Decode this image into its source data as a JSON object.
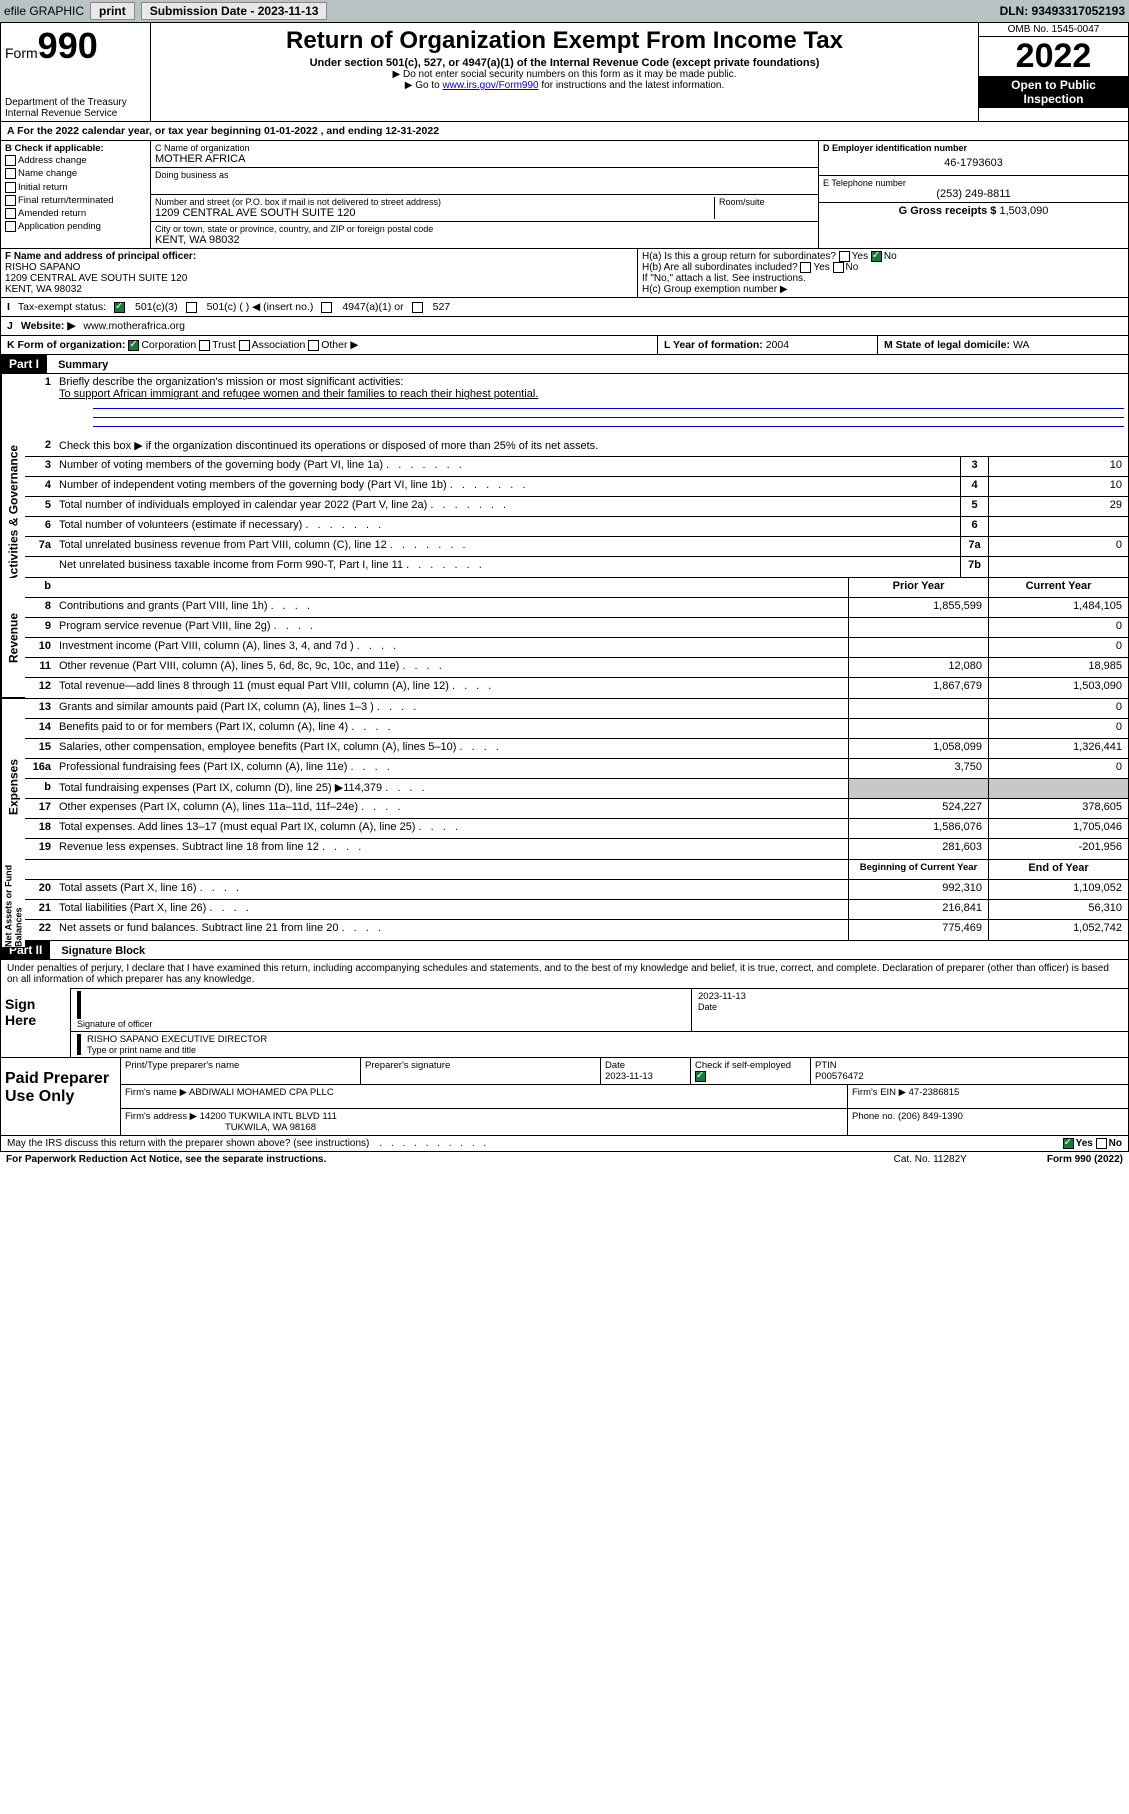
{
  "topbar": {
    "efile": "efile GRAPHIC",
    "print": "print",
    "subdate_lbl": "Submission Date - 2023-11-13",
    "dln": "DLN: 93493317052193"
  },
  "header": {
    "form_prefix": "Form",
    "form_num": "990",
    "title": "Return of Organization Exempt From Income Tax",
    "sub": "Under section 501(c), 527, or 4947(a)(1) of the Internal Revenue Code (except private foundations)",
    "note1": "▶ Do not enter social security numbers on this form as it may be made public.",
    "note2_pre": "▶ Go to ",
    "note2_link": "www.irs.gov/Form990",
    "note2_post": " for instructions and the latest information.",
    "dept": "Department of the Treasury",
    "irs": "Internal Revenue Service",
    "omb": "OMB No. 1545-0047",
    "year": "2022",
    "open": "Open to Public Inspection"
  },
  "line_a": "A For the 2022 calendar year, or tax year beginning 01-01-2022  , and ending 12-31-2022",
  "b": {
    "hdr": "B Check if applicable:",
    "items": [
      "Address change",
      "Name change",
      "Initial return",
      "Final return/terminated",
      "Amended return",
      "Application pending"
    ]
  },
  "c": {
    "name_lbl": "C Name of organization",
    "name": "MOTHER AFRICA",
    "dba_lbl": "Doing business as",
    "street_lbl": "Number and street (or P.O. box if mail is not delivered to street address)",
    "room_lbl": "Room/suite",
    "street": "1209 CENTRAL AVE SOUTH SUITE 120",
    "city_lbl": "City or town, state or province, country, and ZIP or foreign postal code",
    "city": "KENT, WA  98032"
  },
  "d": {
    "lbl": "D Employer identification number",
    "val": "46-1793603"
  },
  "e": {
    "lbl": "E Telephone number",
    "val": "(253) 249-8811"
  },
  "g": {
    "lbl": "G Gross receipts $",
    "val": "1,503,090"
  },
  "f": {
    "lbl": "F Name and address of principal officer:",
    "name": "RISHO SAPANO",
    "addr1": "1209 CENTRAL AVE SOUTH SUITE 120",
    "addr2": "KENT, WA  98032"
  },
  "h": {
    "a_lbl": "H(a)  Is this a group return for subordinates?",
    "b_lbl": "H(b)  Are all subordinates included?",
    "b_note": "If \"No,\" attach a list. See instructions.",
    "c_lbl": "H(c)  Group exemption number ▶",
    "yes": "Yes",
    "no": "No"
  },
  "i": {
    "lbl": "Tax-exempt status:",
    "opts": [
      "501(c)(3)",
      "501(c) (  ) ◀ (insert no.)",
      "4947(a)(1) or",
      "527"
    ]
  },
  "j": {
    "lbl": "Website: ▶",
    "val": "www.motherafrica.org"
  },
  "k": {
    "lbl": "K Form of organization:",
    "opts": [
      "Corporation",
      "Trust",
      "Association",
      "Other ▶"
    ]
  },
  "l": {
    "lbl": "L Year of formation:",
    "val": "2004"
  },
  "m": {
    "lbl": "M State of legal domicile:",
    "val": "WA"
  },
  "part1": {
    "num": "Part I",
    "title": "Summary"
  },
  "mission": {
    "lbl": "Briefly describe the organization's mission or most significant activities:",
    "text": "To support African immigrant and refugee women and their families to reach their highest potential."
  },
  "line2": "Check this box ▶      if the organization discontinued its operations or disposed of more than 25% of its net assets.",
  "rows_ag": [
    {
      "n": "3",
      "d": "Number of voting members of the governing body (Part VI, line 1a)",
      "box": "3",
      "v": "10"
    },
    {
      "n": "4",
      "d": "Number of independent voting members of the governing body (Part VI, line 1b)",
      "box": "4",
      "v": "10"
    },
    {
      "n": "5",
      "d": "Total number of individuals employed in calendar year 2022 (Part V, line 2a)",
      "box": "5",
      "v": "29"
    },
    {
      "n": "6",
      "d": "Total number of volunteers (estimate if necessary)",
      "box": "6",
      "v": ""
    },
    {
      "n": "7a",
      "d": "Total unrelated business revenue from Part VIII, column (C), line 12",
      "box": "7a",
      "v": "0"
    },
    {
      "n": "",
      "d": "Net unrelated business taxable income from Form 990-T, Part I, line 11",
      "box": "7b",
      "v": ""
    }
  ],
  "col_hdr": {
    "prior": "Prior Year",
    "curr": "Current Year"
  },
  "rows_rev": [
    {
      "n": "8",
      "d": "Contributions and grants (Part VIII, line 1h)",
      "p": "1,855,599",
      "c": "1,484,105"
    },
    {
      "n": "9",
      "d": "Program service revenue (Part VIII, line 2g)",
      "p": "",
      "c": "0"
    },
    {
      "n": "10",
      "d": "Investment income (Part VIII, column (A), lines 3, 4, and 7d )",
      "p": "",
      "c": "0"
    },
    {
      "n": "11",
      "d": "Other revenue (Part VIII, column (A), lines 5, 6d, 8c, 9c, 10c, and 11e)",
      "p": "12,080",
      "c": "18,985"
    },
    {
      "n": "12",
      "d": "Total revenue—add lines 8 through 11 (must equal Part VIII, column (A), line 12)",
      "p": "1,867,679",
      "c": "1,503,090"
    }
  ],
  "rows_exp": [
    {
      "n": "13",
      "d": "Grants and similar amounts paid (Part IX, column (A), lines 1–3 )",
      "p": "",
      "c": "0"
    },
    {
      "n": "14",
      "d": "Benefits paid to or for members (Part IX, column (A), line 4)",
      "p": "",
      "c": "0"
    },
    {
      "n": "15",
      "d": "Salaries, other compensation, employee benefits (Part IX, column (A), lines 5–10)",
      "p": "1,058,099",
      "c": "1,326,441"
    },
    {
      "n": "16a",
      "d": "Professional fundraising fees (Part IX, column (A), line 11e)",
      "p": "3,750",
      "c": "0"
    },
    {
      "n": "b",
      "d": "Total fundraising expenses (Part IX, column (D), line 25) ▶114,379",
      "p": "GRAY",
      "c": "GRAY"
    },
    {
      "n": "17",
      "d": "Other expenses (Part IX, column (A), lines 11a–11d, 11f–24e)",
      "p": "524,227",
      "c": "378,605"
    },
    {
      "n": "18",
      "d": "Total expenses. Add lines 13–17 (must equal Part IX, column (A), line 25)",
      "p": "1,586,076",
      "c": "1,705,046"
    },
    {
      "n": "19",
      "d": "Revenue less expenses. Subtract line 18 from line 12",
      "p": "281,603",
      "c": "-201,956"
    }
  ],
  "col_hdr2": {
    "prior": "Beginning of Current Year",
    "curr": "End of Year"
  },
  "rows_net": [
    {
      "n": "20",
      "d": "Total assets (Part X, line 16)",
      "p": "992,310",
      "c": "1,109,052"
    },
    {
      "n": "21",
      "d": "Total liabilities (Part X, line 26)",
      "p": "216,841",
      "c": "56,310"
    },
    {
      "n": "22",
      "d": "Net assets or fund balances. Subtract line 21 from line 20",
      "p": "775,469",
      "c": "1,052,742"
    }
  ],
  "vlabels": {
    "ag": "Activities & Governance",
    "rev": "Revenue",
    "exp": "Expenses",
    "net": "Net Assets or Fund Balances"
  },
  "part2": {
    "num": "Part II",
    "title": "Signature Block"
  },
  "sig": {
    "decl": "Under penalties of perjury, I declare that I have examined this return, including accompanying schedules and statements, and to the best of my knowledge and belief, it is true, correct, and complete. Declaration of preparer (other than officer) is based on all information of which preparer has any knowledge.",
    "here": "Sign Here",
    "off_sig": "Signature of officer",
    "date_lbl": "Date",
    "date": "2023-11-13",
    "name": "RISHO SAPANO  EXECUTIVE DIRECTOR",
    "name_lbl": "Type or print name and title"
  },
  "prep": {
    "left": "Paid Preparer Use Only",
    "r1": {
      "c1": "Print/Type preparer's name",
      "c1v": "",
      "c2": "Preparer's signature",
      "c3": "Date",
      "c3v": "2023-11-13",
      "c4": "Check       if self-employed",
      "c5": "PTIN",
      "c5v": "P00576472"
    },
    "r2": {
      "c1": "Firm's name      ▶",
      "c1v": "ABDIWALI MOHAMED CPA PLLC",
      "c2": "Firm's EIN ▶",
      "c2v": "47-2386815"
    },
    "r3": {
      "c1": "Firm's address ▶",
      "c1v": "14200 TUKWILA INTL BLVD 111",
      "c2": "Phone no.",
      "c2v": "(206) 849-1390"
    },
    "r3b": "TUKWILA, WA  98168"
  },
  "discuss": {
    "q": "May the IRS discuss this return with the preparer shown above? (see instructions)",
    "yes": "Yes",
    "no": "No"
  },
  "footer": {
    "l": "For Paperwork Reduction Act Notice, see the separate instructions.",
    "c": "Cat. No. 11282Y",
    "r": "Form 990 (2022)"
  }
}
